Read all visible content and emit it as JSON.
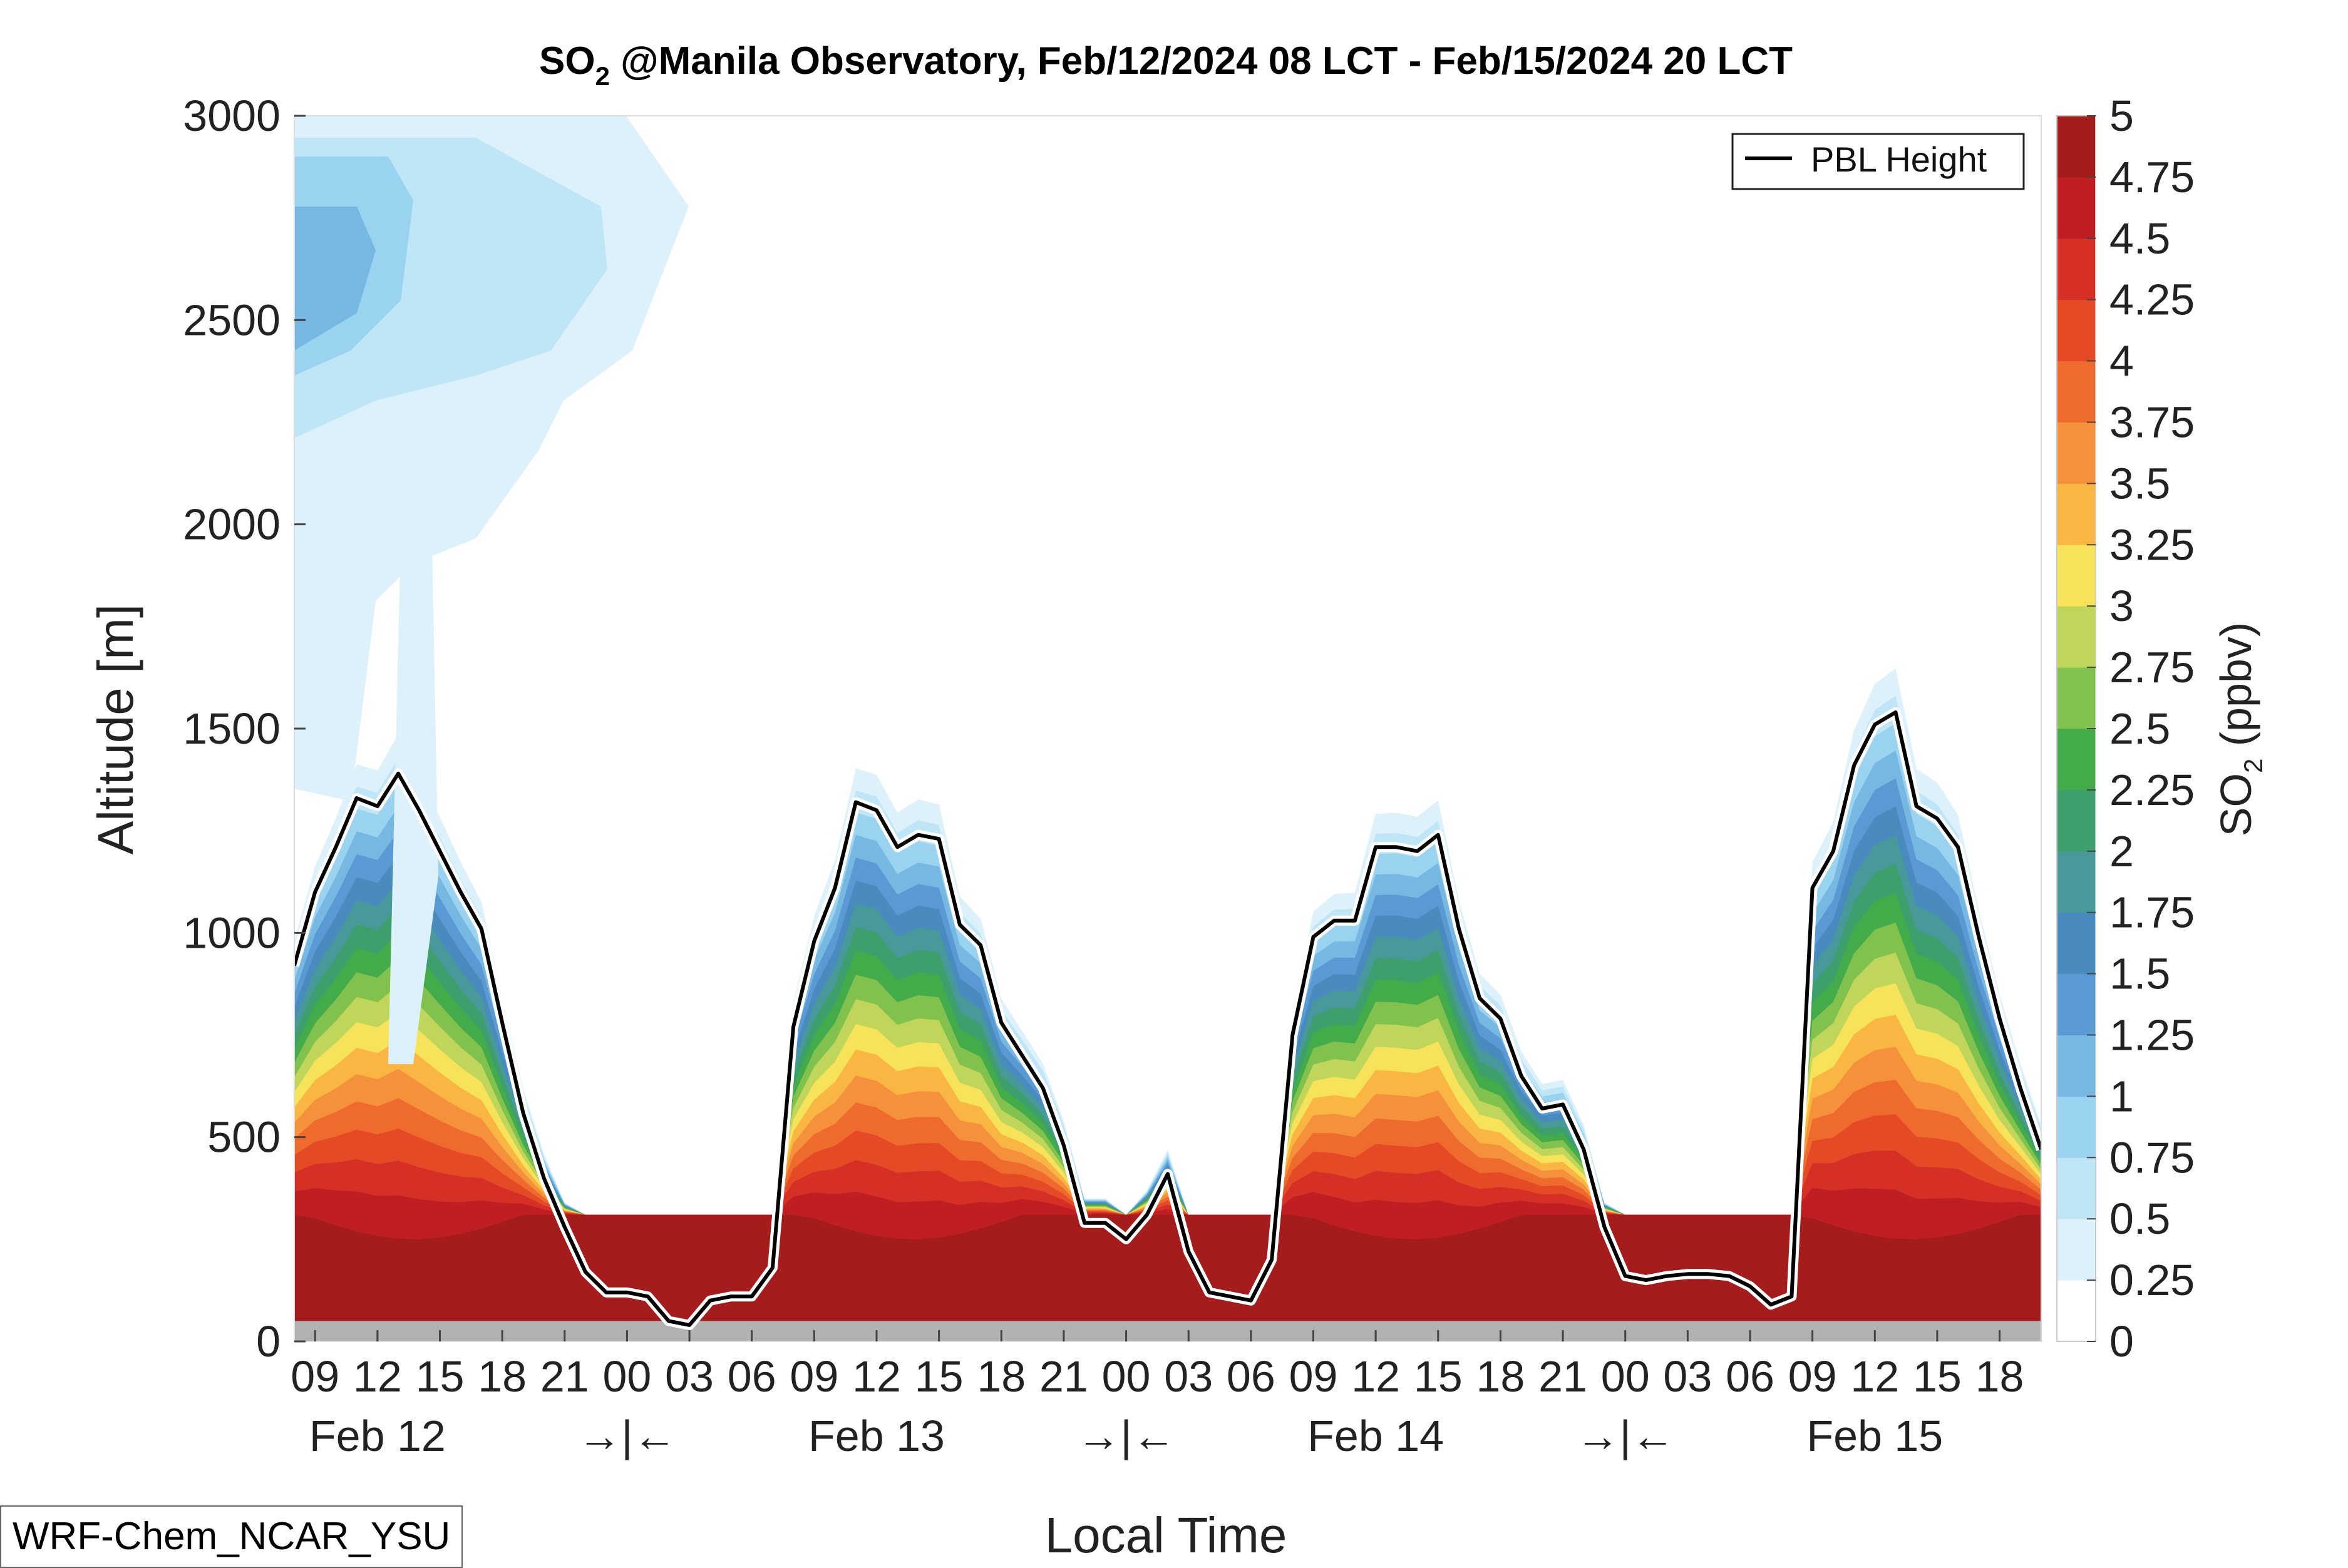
{
  "chart_data": {
    "type": "heatmap",
    "title": "SO",
    "title_subscript": "2",
    "title_rest": " @Manila Observatory, Feb/12/2024 08 LCT - Feb/15/2024 20 LCT",
    "xlabel": "Local Time",
    "ylabel": "Altitude [m]",
    "ylim": [
      0,
      3000
    ],
    "yticks": [
      "0",
      "500",
      "1000",
      "1500",
      "2000",
      "2500",
      "3000"
    ],
    "xlim_hours": [
      8,
      92
    ],
    "xtick_labels": [
      "09",
      "12",
      "15",
      "18",
      "21",
      "00",
      "03",
      "06",
      "09",
      "12",
      "15",
      "18",
      "21",
      "00",
      "03",
      "06",
      "09",
      "12",
      "15",
      "18",
      "21",
      "00",
      "03",
      "06",
      "09",
      "12",
      "15",
      "18"
    ],
    "day_labels": [
      "Feb 12",
      "→|←",
      "Feb 13",
      "→|←",
      "Feb 14",
      "→|←",
      "Feb 15"
    ],
    "colorbar": {
      "label": "SO",
      "label_subscript": "2",
      "label_rest": " (ppbv)",
      "ticks": [
        "0",
        "0.25",
        "0.5",
        "0.75",
        "1",
        "1.25",
        "1.5",
        "1.75",
        "2",
        "2.25",
        "2.5",
        "2.75",
        "3",
        "3.25",
        "3.5",
        "3.75",
        "4",
        "4.25",
        "4.5",
        "4.75",
        "5"
      ],
      "colors": [
        "#ffffff",
        "#ddf1fb",
        "#bfe6f6",
        "#9ad3f0",
        "#76b8e2",
        "#5a9ad4",
        "#4a8bbf",
        "#48999a",
        "#3f9f6c",
        "#44ab4a",
        "#80c24d",
        "#bfd65a",
        "#f7e35a",
        "#f9b642",
        "#f5903b",
        "#ef6a2d",
        "#e44a26",
        "#d52f26",
        "#bf1f22",
        "#a51c1d"
      ]
    },
    "legend": {
      "label": "PBL Height",
      "placement": "top-right"
    },
    "pbl_height": {
      "hours": [
        8,
        9,
        10,
        11,
        12,
        13,
        14,
        15,
        16,
        17,
        18,
        19,
        20,
        21,
        22,
        23,
        24,
        25,
        26,
        27,
        28,
        29,
        30,
        31,
        32,
        33,
        34,
        35,
        36,
        37,
        38,
        39,
        40,
        41,
        42,
        43,
        44,
        45,
        46,
        47,
        48,
        49,
        50,
        51,
        52,
        53,
        54,
        55,
        56,
        57,
        58,
        59,
        60,
        61,
        62,
        63,
        64,
        65,
        66,
        67,
        68,
        69,
        70,
        71,
        72,
        73,
        74,
        75,
        76,
        77,
        78,
        79,
        80,
        81,
        82,
        83,
        84,
        85,
        86,
        87,
        88,
        89,
        90,
        91,
        92
      ],
      "values": [
        920,
        1100,
        1210,
        1330,
        1310,
        1390,
        1300,
        1200,
        1100,
        1010,
        780,
        560,
        400,
        280,
        170,
        120,
        120,
        110,
        50,
        40,
        100,
        110,
        110,
        180,
        770,
        980,
        1110,
        1320,
        1300,
        1210,
        1240,
        1230,
        1020,
        970,
        780,
        700,
        620,
        480,
        290,
        290,
        250,
        310,
        410,
        220,
        120,
        110,
        100,
        200,
        750,
        990,
        1030,
        1030,
        1210,
        1210,
        1200,
        1240,
        1010,
        840,
        790,
        650,
        570,
        580,
        470,
        280,
        160,
        150,
        160,
        165,
        165,
        160,
        135,
        90,
        110,
        1110,
        1200,
        1410,
        1510,
        1540,
        1310,
        1280,
        1210,
        990,
        790,
        620,
        470
      ]
    },
    "surface_layer_m": 50
  },
  "footer": {
    "model_label": "WRF-Chem_NCAR_YSU"
  }
}
